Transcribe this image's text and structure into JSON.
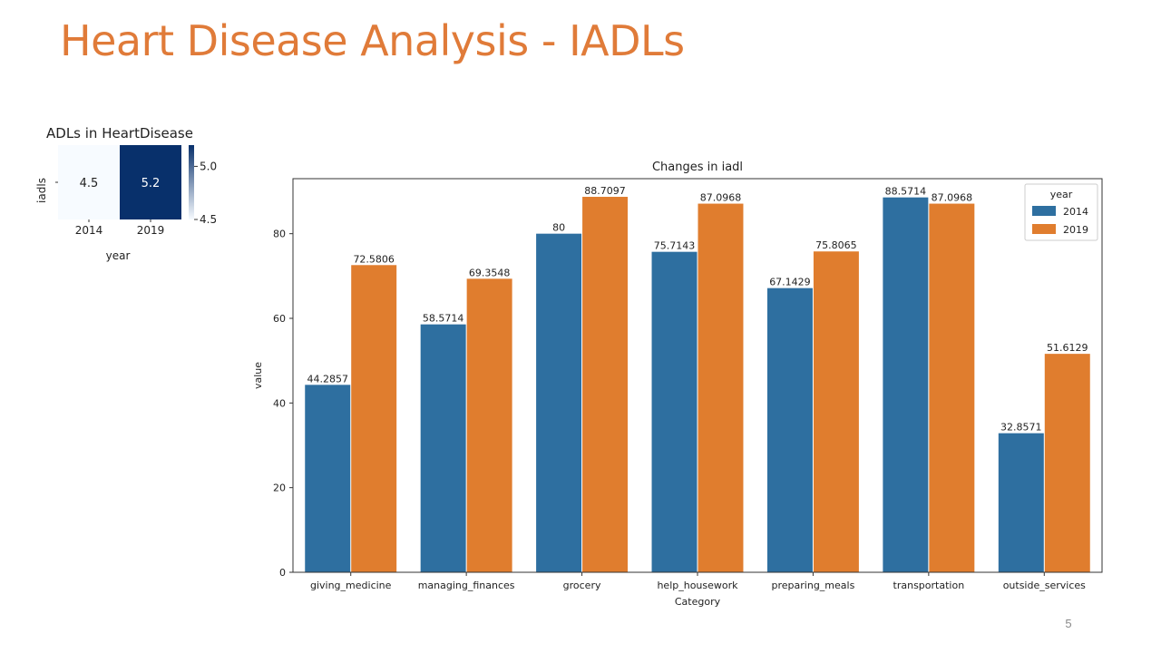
{
  "slide": {
    "title": "Heart Disease Analysis - IADLs",
    "page_number": "5",
    "title_color": "#E07B39"
  },
  "colors": {
    "series_2014": "#2E6FA0",
    "series_2019": "#E07D2E",
    "heat_low": "#F7FBFF",
    "heat_high": "#08306B"
  },
  "chart_data": [
    {
      "type": "heatmap",
      "title": "ADLs in HeartDisease",
      "xlabel": "year",
      "ylabel": "",
      "x_categories": [
        "2014",
        "2019"
      ],
      "y_categories": [
        "iadls"
      ],
      "values": [
        [
          4.5,
          5.2
        ]
      ],
      "value_labels": [
        [
          "4.5",
          "5.2"
        ]
      ],
      "colorbar": {
        "range": [
          4.5,
          5.2
        ],
        "ticks": [
          5.0,
          4.5
        ],
        "tick_labels": [
          "5.0",
          "4.5"
        ]
      },
      "colormap": "Blues"
    },
    {
      "type": "bar",
      "title": "Changes in iadl",
      "xlabel": "Category",
      "ylabel": "value",
      "ylim": [
        0,
        93
      ],
      "y_ticks": [
        0,
        20,
        40,
        60,
        80
      ],
      "grid": false,
      "legend": {
        "title": "year",
        "position": "top-right"
      },
      "categories": [
        "giving_medicine",
        "managing_finances",
        "grocery",
        "help_housework",
        "preparing_meals",
        "transportation",
        "outside_services"
      ],
      "series": [
        {
          "name": "2014",
          "values": [
            44.2857,
            58.5714,
            80,
            75.7143,
            67.1429,
            88.5714,
            32.8571
          ],
          "labels": [
            "44.2857",
            "58.5714",
            "80",
            "75.7143",
            "67.1429",
            "88.5714",
            "32.8571"
          ]
        },
        {
          "name": "2019",
          "values": [
            72.5806,
            69.3548,
            88.7097,
            87.0968,
            75.8065,
            87.0968,
            51.6129
          ],
          "labels": [
            "72.5806",
            "69.3548",
            "88.7097",
            "87.0968",
            "75.8065",
            "87.0968",
            "51.6129"
          ]
        }
      ]
    }
  ]
}
